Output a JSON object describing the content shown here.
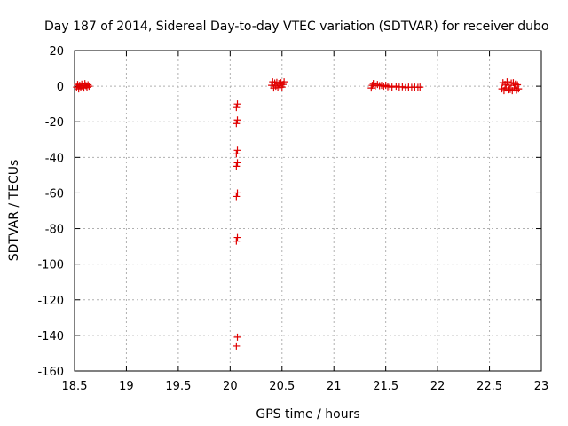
{
  "chart_data": {
    "type": "scatter",
    "title": "Day 187 of 2014, Sidereal Day-to-day VTEC variation (SDTVAR) for receiver dubo",
    "xlabel": "GPS time / hours",
    "ylabel": "SDTVAR / TECUs",
    "xlim": [
      18.5,
      23
    ],
    "ylim": [
      -160,
      20
    ],
    "xticks": [
      18.5,
      19,
      19.5,
      20,
      20.5,
      21,
      21.5,
      22,
      22.5,
      23
    ],
    "xtick_labels": [
      "18.5",
      "19",
      "19.5",
      "20",
      "20.5",
      "21",
      "21.5",
      "22",
      "22.5",
      "23"
    ],
    "yticks": [
      20,
      0,
      -20,
      -40,
      -60,
      -80,
      -100,
      -120,
      -140,
      -160
    ],
    "ytick_labels": [
      "20",
      "0",
      "-20",
      "-40",
      "-60",
      "-80",
      "-100",
      "-120",
      "-140",
      "-160"
    ],
    "grid": true,
    "marker": "+",
    "series": [
      {
        "name": "SDTVAR",
        "color": "#e00000",
        "points": [
          [
            18.52,
            -0.5
          ],
          [
            18.53,
            1.0
          ],
          [
            18.54,
            -1.5
          ],
          [
            18.55,
            0.5
          ],
          [
            18.56,
            -0.8
          ],
          [
            18.57,
            1.2
          ],
          [
            18.58,
            0.0
          ],
          [
            18.59,
            -1.0
          ],
          [
            18.6,
            1.5
          ],
          [
            18.61,
            0.3
          ],
          [
            18.62,
            -0.6
          ],
          [
            18.63,
            0.8
          ],
          [
            18.64,
            0.0
          ],
          [
            20.06,
            -12
          ],
          [
            20.07,
            -10
          ],
          [
            20.06,
            -21
          ],
          [
            20.07,
            -19
          ],
          [
            20.06,
            -38
          ],
          [
            20.07,
            -36
          ],
          [
            20.06,
            -45
          ],
          [
            20.07,
            -43
          ],
          [
            20.06,
            -62
          ],
          [
            20.07,
            -60
          ],
          [
            20.06,
            -87
          ],
          [
            20.07,
            -85
          ],
          [
            20.07,
            -141
          ],
          [
            20.06,
            -146
          ],
          [
            20.4,
            0.5
          ],
          [
            20.41,
            2.5
          ],
          [
            20.42,
            -1.0
          ],
          [
            20.43,
            1.8
          ],
          [
            20.44,
            0.0
          ],
          [
            20.45,
            2.2
          ],
          [
            20.46,
            -0.8
          ],
          [
            20.47,
            1.5
          ],
          [
            20.48,
            0.2
          ],
          [
            20.49,
            2.0
          ],
          [
            20.5,
            -0.5
          ],
          [
            20.51,
            1.0
          ],
          [
            20.52,
            2.5
          ],
          [
            21.36,
            -1.0
          ],
          [
            21.37,
            0.5
          ],
          [
            21.38,
            1.5
          ],
          [
            21.4,
            0.2
          ],
          [
            21.42,
            1.0
          ],
          [
            21.44,
            0.3
          ],
          [
            21.46,
            0.5
          ],
          [
            21.48,
            0.0
          ],
          [
            21.5,
            0.5
          ],
          [
            21.52,
            -0.3
          ],
          [
            21.54,
            0.0
          ],
          [
            21.56,
            -0.5
          ],
          [
            21.6,
            0.0
          ],
          [
            21.63,
            -0.5
          ],
          [
            21.66,
            -0.3
          ],
          [
            21.69,
            -0.8
          ],
          [
            21.72,
            -0.5
          ],
          [
            21.75,
            -0.6
          ],
          [
            21.78,
            -0.5
          ],
          [
            21.81,
            -0.6
          ],
          [
            21.83,
            -0.5
          ],
          [
            22.62,
            -1.5
          ],
          [
            22.63,
            2.0
          ],
          [
            22.64,
            -2.5
          ],
          [
            22.65,
            1.0
          ],
          [
            22.66,
            -1.0
          ],
          [
            22.67,
            2.5
          ],
          [
            22.68,
            -2.0
          ],
          [
            22.69,
            0.5
          ],
          [
            22.7,
            -1.8
          ],
          [
            22.71,
            1.8
          ],
          [
            22.72,
            -2.5
          ],
          [
            22.73,
            2.0
          ],
          [
            22.74,
            -1.0
          ],
          [
            22.75,
            1.2
          ],
          [
            22.76,
            -2.2
          ],
          [
            22.77,
            0.8
          ],
          [
            22.78,
            -1.5
          ]
        ]
      }
    ]
  }
}
